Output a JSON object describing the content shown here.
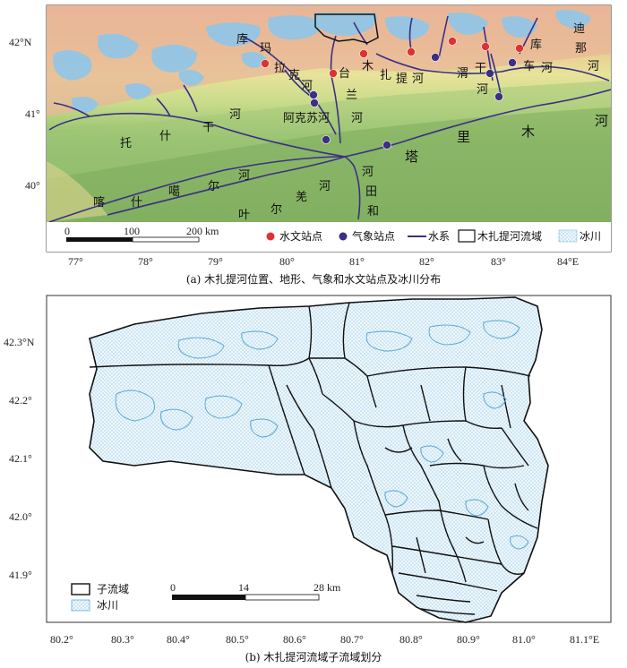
{
  "panel_a": {
    "caption": "(a) 木扎提河位置、地形、气象和水文站点及冰川分布",
    "x_ticks": [
      "77°",
      "78°",
      "79°",
      "80°",
      "81°",
      "82°",
      "83°",
      "84°E"
    ],
    "y_ticks": [
      "42°N",
      "41°",
      "40°"
    ],
    "river_labels": [
      {
        "id": "kuma-1",
        "text": "库"
      },
      {
        "id": "kuma-2",
        "text": "玛"
      },
      {
        "id": "lake-1",
        "text": "拉"
      },
      {
        "id": "lake-2",
        "text": "克"
      },
      {
        "id": "lake-3",
        "text": "河"
      },
      {
        "id": "tailan-1",
        "text": "台"
      },
      {
        "id": "tailan-2",
        "text": "兰"
      },
      {
        "id": "tailan-3",
        "text": "河"
      },
      {
        "id": "muzati-1",
        "text": "木"
      },
      {
        "id": "muzati-2",
        "text": "扎"
      },
      {
        "id": "muzati-3",
        "text": "提"
      },
      {
        "id": "muzati-4",
        "text": "河"
      },
      {
        "id": "weigan-1",
        "text": "渭"
      },
      {
        "id": "weigan-2",
        "text": "干"
      },
      {
        "id": "weigan-3",
        "text": "河"
      },
      {
        "id": "kuche-1",
        "text": "库"
      },
      {
        "id": "kuche-2",
        "text": "车"
      },
      {
        "id": "kuche-3",
        "text": "河"
      },
      {
        "id": "dina-1",
        "text": "迪"
      },
      {
        "id": "dina-2",
        "text": "那"
      },
      {
        "id": "dina-3",
        "text": "河"
      },
      {
        "id": "tuoshigan-1",
        "text": "托"
      },
      {
        "id": "tuoshigan-2",
        "text": "什"
      },
      {
        "id": "tuoshigan-3",
        "text": "干"
      },
      {
        "id": "tuoshigan-4",
        "text": "河"
      },
      {
        "id": "akesu",
        "text": "阿克苏河"
      },
      {
        "id": "kashi-1",
        "text": "喀"
      },
      {
        "id": "kashi-2",
        "text": "什"
      },
      {
        "id": "kashi-3",
        "text": "噶"
      },
      {
        "id": "kashi-4",
        "text": "尔"
      },
      {
        "id": "kashi-5",
        "text": "河"
      },
      {
        "id": "yeerqiang-1",
        "text": "叶"
      },
      {
        "id": "yeerqiang-2",
        "text": "尔"
      },
      {
        "id": "yeerqiang-3",
        "text": "羌"
      },
      {
        "id": "yeerqiang-4",
        "text": "河"
      },
      {
        "id": "hetian-1",
        "text": "河"
      },
      {
        "id": "hetian-2",
        "text": "田"
      },
      {
        "id": "hetian-3",
        "text": "和"
      },
      {
        "id": "tarim-1",
        "text": "塔"
      },
      {
        "id": "tarim-2",
        "text": "里"
      },
      {
        "id": "tarim-3",
        "text": "木"
      },
      {
        "id": "tarim-4",
        "text": "河"
      }
    ],
    "scale_ticks": [
      "0",
      "100",
      "200 km"
    ],
    "legend": {
      "hydro": "水文站点",
      "meteo": "气象站点",
      "river": "水系",
      "basin": "木扎提河流域",
      "glacier": "冰川"
    },
    "colors": {
      "hydro": "#e03131",
      "meteo": "#3b2f86",
      "river": "#3b2f86",
      "glacier": "#6fb7e0"
    }
  },
  "panel_b": {
    "caption": "(b) 木扎提河流域子流域划分",
    "x_ticks": [
      "80.2°",
      "80.3°",
      "80.4°",
      "80.5°",
      "80.6°",
      "80.7°",
      "80.8°",
      "80.9°",
      "81.0°",
      "81.1°E"
    ],
    "y_ticks": [
      "42.3°N",
      "42.2°",
      "42.1°",
      "42.0°",
      "41.9°"
    ],
    "scale_ticks": [
      "0",
      "14",
      "28 km"
    ],
    "legend": {
      "subbasin": "子流域",
      "glacier": "冰川"
    }
  }
}
